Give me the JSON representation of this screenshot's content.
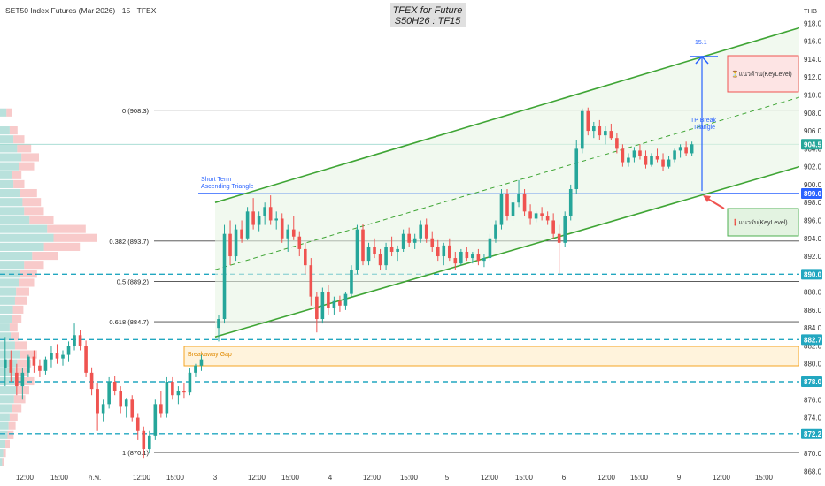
{
  "header": {
    "symbol": "SET50 Index Futures (Mar 2026) · 15 · TFEX",
    "title_line1": "TFEX for Future",
    "title_line2": "S50H26 : TF15",
    "currency": "THB"
  },
  "colors": {
    "up": "#26a69a",
    "down": "#ef5350",
    "channel": "#3fa535",
    "blue_level": "#2962ff",
    "cyan_level": "#22a7c0",
    "target": "#2962ff",
    "resistance_box": "#ef5350",
    "support_box": "#4caf50",
    "gap_box": "#f5a623"
  },
  "chart_data": {
    "type": "candlestick",
    "y_axis": {
      "min": 868,
      "max": 920,
      "ticks": [
        868.0,
        870.0,
        872.0,
        874.0,
        876.0,
        878.0,
        880.0,
        882.0,
        884.0,
        886.0,
        888.0,
        890.0,
        892.0,
        894.0,
        896.0,
        898.0,
        900.0,
        902.0,
        904.0,
        906.0,
        908.0,
        910.0,
        912.0,
        914.0,
        916.0,
        918.0
      ]
    },
    "x_axis": {
      "labels": [
        "12:00",
        "15:00",
        "ก.พ.",
        "12:00",
        "15:00",
        "3",
        "12:00",
        "15:00",
        "4",
        "12:00",
        "15:00",
        "5",
        "12:00",
        "15:00",
        "6",
        "12:00",
        "15:00",
        "9",
        "12:00",
        "15:00"
      ]
    },
    "price_badges": [
      {
        "label": "904.5",
        "value": 904.5
      },
      {
        "label": "899.0",
        "value": 899.0
      },
      {
        "label": "890.0",
        "value": 890.0
      },
      {
        "label": "882.7",
        "value": 882.7
      },
      {
        "label": "878.0",
        "value": 878.0
      },
      {
        "label": "872.2",
        "value": 872.2
      }
    ],
    "fib_levels": [
      {
        "label": "0 (908.3)",
        "value": 908.3
      },
      {
        "label": "0.382 (893.7)",
        "value": 893.7
      },
      {
        "label": "0.5 (889.2)",
        "value": 889.2
      },
      {
        "label": "0.618 (884.7)",
        "value": 884.7
      },
      {
        "label": "1 (870.1)",
        "value": 870.1
      }
    ],
    "dashed_levels": [
      890.0,
      882.7,
      878.0,
      872.2
    ],
    "breakout_level": 899.0,
    "annotations": {
      "triangle_label_1": "Short Term",
      "triangle_label_2": "Ascending Triangle",
      "gap_label": "Breakaway Gap",
      "tp_label_1": "TP Break",
      "tp_label_2": "Triangle",
      "target_value": "15.1",
      "resistance_label": "⏳แนวต้าน(KeyLevel)",
      "support_label": "❗แนวรับ(KeyLevel)"
    },
    "candles": [
      [
        879.5,
        883.0,
        877.5,
        880.5
      ],
      [
        880.5,
        881.5,
        878.0,
        879.0
      ],
      [
        879.0,
        880.0,
        876.5,
        877.5
      ],
      [
        877.5,
        879.5,
        876.0,
        879.0
      ],
      [
        879.0,
        881.0,
        878.5,
        880.8
      ],
      [
        880.8,
        881.5,
        879.0,
        879.8
      ],
      [
        879.8,
        880.5,
        878.5,
        879.2
      ],
      [
        879.2,
        880.8,
        878.8,
        880.5
      ],
      [
        880.5,
        882.0,
        879.6,
        881.2
      ],
      [
        881.2,
        882.2,
        880.0,
        880.6
      ],
      [
        880.6,
        881.5,
        879.8,
        881.0
      ],
      [
        881.0,
        882.5,
        880.2,
        882.0
      ],
      [
        882.0,
        884.5,
        881.5,
        883.2
      ],
      [
        883.2,
        883.8,
        881.5,
        882.0
      ],
      [
        882.0,
        882.6,
        878.5,
        879.0
      ],
      [
        879.0,
        879.6,
        876.5,
        877.2
      ],
      [
        877.2,
        877.8,
        872.5,
        874.5
      ],
      [
        874.5,
        876.0,
        873.5,
        875.5
      ],
      [
        875.5,
        878.5,
        875.0,
        878.0
      ],
      [
        878.0,
        878.6,
        876.5,
        877.0
      ],
      [
        877.0,
        877.5,
        874.5,
        875.2
      ],
      [
        875.2,
        876.2,
        874.0,
        876.0
      ],
      [
        876.0,
        876.5,
        873.5,
        874.0
      ],
      [
        874.0,
        874.5,
        871.5,
        872.5
      ],
      [
        872.5,
        873.0,
        869.5,
        870.5
      ],
      [
        870.5,
        872.5,
        870.0,
        872.0
      ],
      [
        872.0,
        876.0,
        871.5,
        875.5
      ],
      [
        875.5,
        877.0,
        874.0,
        874.5
      ],
      [
        874.5,
        878.5,
        874.0,
        878.0
      ],
      [
        878.0,
        878.5,
        876.0,
        876.5
      ],
      [
        876.5,
        877.5,
        875.5,
        877.0
      ],
      [
        877.0,
        877.8,
        876.2,
        876.8
      ],
      [
        876.8,
        879.5,
        876.5,
        879.0
      ],
      [
        879.0,
        880.0,
        878.5,
        879.8
      ],
      [
        879.8,
        881.0,
        879.2,
        880.5
      ],
      [
        884.0,
        885.5,
        882.5,
        885.0
      ],
      [
        885.0,
        895.5,
        884.5,
        894.5
      ],
      [
        894.5,
        896.0,
        891.0,
        892.0
      ],
      [
        892.0,
        895.5,
        891.5,
        895.0
      ],
      [
        895.0,
        896.0,
        893.5,
        894.0
      ],
      [
        894.0,
        897.5,
        893.8,
        897.0
      ],
      [
        897.0,
        898.5,
        895.0,
        895.5
      ],
      [
        895.5,
        897.0,
        894.8,
        896.5
      ],
      [
        896.5,
        898.0,
        895.5,
        897.5
      ],
      [
        897.5,
        898.8,
        895.5,
        896.0
      ],
      [
        896.0,
        897.0,
        895.0,
        896.2
      ],
      [
        896.2,
        896.8,
        893.5,
        894.0
      ],
      [
        894.0,
        895.5,
        892.5,
        895.0
      ],
      [
        895.0,
        896.5,
        893.8,
        894.2
      ],
      [
        894.2,
        894.8,
        892.0,
        892.8
      ],
      [
        892.8,
        893.5,
        890.0,
        891.0
      ],
      [
        891.0,
        891.8,
        886.5,
        887.5
      ],
      [
        887.5,
        888.0,
        883.5,
        885.0
      ],
      [
        885.0,
        888.5,
        884.5,
        888.0
      ],
      [
        888.0,
        888.8,
        885.5,
        886.2
      ],
      [
        886.2,
        887.5,
        885.5,
        887.0
      ],
      [
        887.0,
        887.6,
        885.8,
        886.5
      ],
      [
        886.5,
        888.0,
        886.0,
        887.8
      ],
      [
        887.8,
        891.0,
        887.5,
        890.5
      ],
      [
        890.5,
        895.5,
        890.0,
        895.0
      ],
      [
        895.0,
        895.6,
        891.0,
        891.5
      ],
      [
        891.5,
        893.5,
        891.0,
        893.0
      ],
      [
        893.0,
        894.0,
        891.8,
        892.2
      ],
      [
        892.2,
        892.8,
        890.5,
        891.0
      ],
      [
        891.0,
        893.5,
        890.5,
        893.0
      ],
      [
        893.0,
        894.2,
        892.0,
        892.5
      ],
      [
        892.5,
        893.2,
        891.5,
        892.8
      ],
      [
        892.8,
        895.0,
        892.5,
        894.5
      ],
      [
        894.5,
        895.2,
        893.0,
        893.5
      ],
      [
        893.5,
        894.5,
        892.8,
        894.0
      ],
      [
        894.0,
        896.0,
        893.5,
        895.5
      ],
      [
        895.5,
        896.2,
        893.5,
        894.0
      ],
      [
        894.0,
        894.8,
        892.5,
        893.0
      ],
      [
        893.0,
        893.8,
        891.5,
        892.0
      ],
      [
        892.0,
        893.5,
        891.0,
        893.2
      ],
      [
        893.2,
        894.0,
        891.5,
        891.8
      ],
      [
        891.8,
        892.5,
        890.5,
        891.2
      ],
      [
        891.2,
        892.8,
        891.0,
        892.5
      ],
      [
        892.5,
        893.0,
        891.5,
        891.8
      ],
      [
        891.8,
        892.5,
        891.2,
        892.2
      ],
      [
        892.2,
        892.8,
        891.0,
        891.5
      ],
      [
        891.5,
        892.2,
        890.8,
        891.8
      ],
      [
        891.8,
        894.5,
        891.5,
        894.0
      ],
      [
        894.0,
        896.0,
        893.5,
        895.5
      ],
      [
        895.5,
        899.5,
        895.0,
        899.0
      ],
      [
        899.0,
        899.5,
        896.0,
        896.5
      ],
      [
        896.5,
        898.5,
        896.0,
        898.0
      ],
      [
        898.0,
        900.5,
        897.5,
        899.0
      ],
      [
        899.0,
        899.5,
        896.5,
        897.0
      ],
      [
        897.0,
        897.8,
        895.5,
        896.2
      ],
      [
        896.2,
        897.0,
        895.8,
        896.8
      ],
      [
        896.8,
        897.5,
        896.0,
        896.5
      ],
      [
        896.5,
        897.0,
        895.5,
        896.0
      ],
      [
        896.0,
        896.8,
        894.0,
        894.5
      ],
      [
        894.5,
        895.5,
        890.0,
        893.5
      ],
      [
        893.5,
        897.0,
        893.0,
        896.5
      ],
      [
        896.5,
        900.0,
        896.0,
        899.5
      ],
      [
        899.5,
        905.0,
        899.0,
        904.0
      ],
      [
        904.0,
        908.5,
        903.5,
        908.2
      ],
      [
        908.2,
        908.6,
        905.5,
        906.0
      ],
      [
        906.0,
        907.0,
        905.2,
        906.5
      ],
      [
        906.5,
        907.2,
        905.0,
        905.5
      ],
      [
        905.5,
        906.5,
        904.5,
        906.0
      ],
      [
        906.0,
        906.8,
        905.0,
        905.2
      ],
      [
        905.2,
        905.8,
        903.5,
        904.0
      ],
      [
        904.0,
        904.5,
        902.0,
        902.5
      ],
      [
        902.5,
        903.5,
        902.0,
        903.0
      ],
      [
        903.0,
        904.2,
        902.5,
        903.8
      ],
      [
        903.8,
        904.5,
        902.8,
        903.2
      ],
      [
        903.2,
        903.8,
        901.8,
        902.2
      ],
      [
        902.2,
        903.5,
        902.0,
        903.2
      ],
      [
        903.2,
        904.0,
        902.5,
        902.8
      ],
      [
        902.8,
        903.5,
        901.5,
        902.0
      ],
      [
        902.0,
        903.2,
        901.8,
        902.8
      ],
      [
        902.8,
        904.0,
        902.5,
        903.8
      ],
      [
        903.8,
        904.5,
        903.0,
        904.2
      ],
      [
        904.2,
        904.8,
        903.2,
        903.5
      ],
      [
        903.5,
        904.8,
        903.2,
        904.5
      ]
    ]
  }
}
